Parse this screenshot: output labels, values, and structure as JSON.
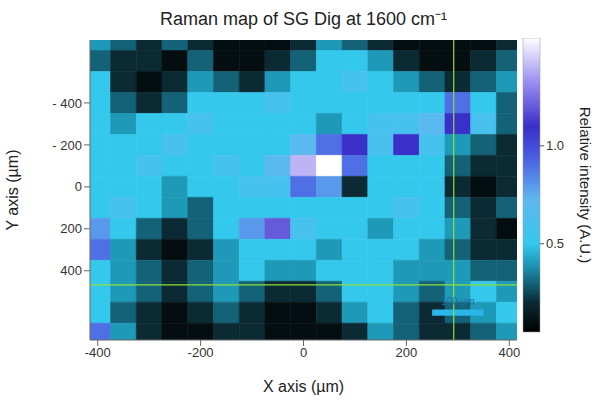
{
  "chart_data": {
    "type": "heatmap",
    "title": "Raman map of SG Dig at 1600 cm⁻¹",
    "x_label": "X axis (µm)",
    "y_label": "Y axis (µm)",
    "xlim": [
      -415,
      415
    ],
    "xticks": [
      -400,
      -200,
      0,
      200,
      400
    ],
    "ylim": [
      730,
      -700
    ],
    "yticks": [
      {
        "value": -400,
        "label": "- 400"
      },
      {
        "value": -200,
        "label": "- 200"
      },
      0,
      200,
      400
    ],
    "cells": {
      "x": [
        -400,
        -350,
        -300,
        -250,
        -200,
        -150,
        -100,
        -50,
        0,
        50,
        100,
        150,
        200,
        250,
        300,
        350,
        400
      ],
      "y": [
        -700,
        -600,
        -500,
        -400,
        -300,
        -200,
        -100,
        0,
        100,
        200,
        300,
        400,
        500,
        600,
        700
      ],
      "values": [
        [
          0.4,
          0.3,
          0.2,
          0.3,
          0.2,
          0.1,
          0.1,
          0.1,
          0.2,
          0.4,
          0.3,
          0.2,
          0.1,
          0.1,
          0.1,
          0.1,
          0.2
        ],
        [
          0.3,
          0.2,
          0.2,
          0.1,
          0.3,
          0.1,
          0.1,
          0.2,
          0.3,
          0.5,
          0.5,
          0.4,
          0.2,
          0.1,
          0.1,
          0.2,
          0.3
        ],
        [
          0.5,
          0.2,
          0.1,
          0.2,
          0.4,
          0.3,
          0.2,
          0.4,
          0.5,
          0.5,
          0.6,
          0.5,
          0.4,
          0.3,
          0.2,
          0.3,
          0.4
        ],
        [
          0.5,
          0.3,
          0.2,
          0.3,
          0.5,
          0.5,
          0.5,
          0.6,
          0.5,
          0.5,
          0.5,
          0.5,
          0.5,
          0.5,
          0.9,
          0.5,
          0.3
        ],
        [
          0.5,
          0.4,
          0.5,
          0.5,
          0.6,
          0.5,
          0.5,
          0.5,
          0.5,
          0.4,
          0.5,
          0.6,
          0.6,
          0.7,
          1.1,
          0.6,
          0.3
        ],
        [
          0.5,
          0.5,
          0.5,
          0.6,
          0.5,
          0.5,
          0.5,
          0.5,
          0.7,
          0.9,
          1.1,
          0.6,
          1.1,
          0.6,
          0.4,
          0.3,
          0.2
        ],
        [
          0.5,
          0.5,
          0.6,
          0.5,
          0.5,
          0.6,
          0.5,
          0.7,
          1.4,
          1.55,
          0.9,
          0.5,
          0.5,
          0.5,
          0.3,
          0.2,
          0.2
        ],
        [
          0.5,
          0.5,
          0.5,
          0.4,
          0.5,
          0.5,
          0.6,
          0.6,
          0.9,
          0.8,
          0.2,
          0.5,
          0.5,
          0.5,
          0.2,
          0.1,
          0.2
        ],
        [
          0.5,
          0.6,
          0.5,
          0.4,
          0.3,
          0.5,
          0.5,
          0.5,
          0.5,
          0.5,
          0.5,
          0.5,
          0.6,
          0.5,
          0.3,
          0.2,
          0.3
        ],
        [
          0.8,
          0.5,
          0.3,
          0.2,
          0.3,
          0.5,
          0.8,
          1.2,
          0.6,
          0.5,
          0.5,
          0.4,
          0.5,
          0.5,
          0.4,
          0.2,
          0.1
        ],
        [
          0.9,
          0.4,
          0.2,
          0.1,
          0.2,
          0.4,
          0.5,
          0.5,
          0.5,
          0.4,
          0.5,
          0.5,
          0.5,
          0.4,
          0.3,
          0.2,
          0.2
        ],
        [
          0.5,
          0.4,
          0.3,
          0.2,
          0.3,
          0.4,
          0.5,
          0.4,
          0.4,
          0.5,
          0.5,
          0.5,
          0.4,
          0.4,
          0.4,
          0.3,
          0.3
        ],
        [
          0.5,
          0.4,
          0.3,
          0.2,
          0.3,
          0.4,
          0.3,
          0.2,
          0.2,
          0.3,
          0.5,
          0.5,
          0.4,
          0.3,
          0.4,
          0.5,
          0.4
        ],
        [
          0.5,
          0.3,
          0.2,
          0.1,
          0.2,
          0.3,
          0.2,
          0.1,
          0.1,
          0.2,
          0.4,
          0.5,
          0.3,
          0.2,
          0.3,
          0.4,
          0.5
        ],
        [
          0.9,
          0.4,
          0.2,
          0.1,
          0.1,
          0.2,
          0.2,
          0.1,
          0.1,
          0.1,
          0.2,
          0.4,
          0.3,
          0.2,
          0.2,
          0.3,
          0.4
        ]
      ]
    },
    "colorbar": {
      "label": "Relative intensity (A.U.)",
      "range": [
        0.05,
        1.55
      ],
      "ticks": [
        0.5,
        {
          "value": 1,
          "label": "1.0"
        }
      ]
    },
    "crosshair": {
      "x": 292,
      "y": 467
    },
    "scale_bar": {
      "label": "100 µm",
      "length": 100
    }
  }
}
